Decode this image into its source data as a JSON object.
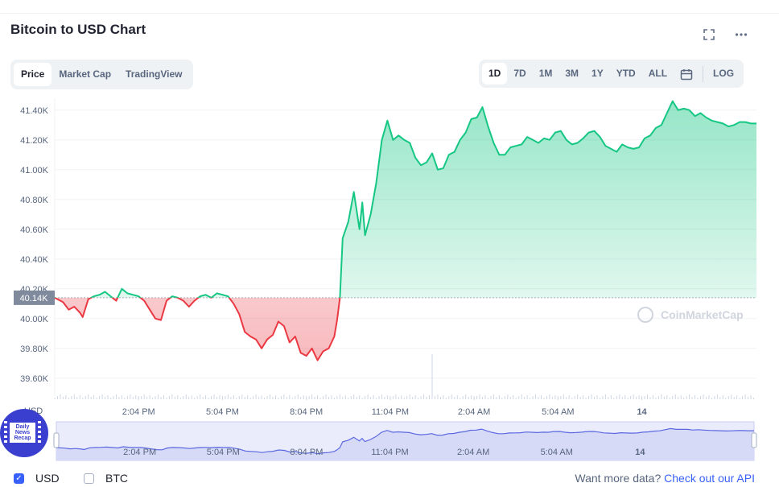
{
  "title": "Bitcoin to USD Chart",
  "header_icons": [
    "fullscreen-icon",
    "more-icon"
  ],
  "tabs": [
    {
      "label": "Price",
      "active": true
    },
    {
      "label": "Market Cap",
      "active": false
    },
    {
      "label": "TradingView",
      "active": false
    }
  ],
  "ranges": [
    {
      "label": "1D",
      "active": true
    },
    {
      "label": "7D",
      "active": false
    },
    {
      "label": "1M",
      "active": false
    },
    {
      "label": "3M",
      "active": false
    },
    {
      "label": "1Y",
      "active": false
    },
    {
      "label": "YTD",
      "active": false
    },
    {
      "label": "ALL",
      "active": false
    }
  ],
  "log_label": "LOG",
  "watermark": "CoinMarketCap",
  "badge": {
    "line1": "Daily",
    "line2": "News",
    "line3": "Recap"
  },
  "footer": {
    "usd_label": "USD",
    "btc_label": "BTC",
    "api_prompt": "Want more data?",
    "api_link": "Check out our API"
  },
  "colors": {
    "up": "#16c784",
    "down": "#ea3943",
    "accent": "#3861fb",
    "baseline_tag": "#808a9d",
    "navigator": "#5b68e0"
  },
  "chart_data": {
    "type": "area",
    "title": "",
    "ylabel": "USD",
    "ylim": [
      39480,
      41480
    ],
    "yticks": [
      39600,
      39800,
      40000,
      40200,
      40400,
      40600,
      40800,
      41000,
      41200,
      41400
    ],
    "ytick_labels": [
      "39.60K",
      "39.80K",
      "40.00K",
      "40.20K",
      "40.40K",
      "40.60K",
      "40.80K",
      "41.00K",
      "41.20K",
      "41.40K"
    ],
    "baseline": 40140,
    "baseline_label": "40.14K",
    "xlim": [
      0,
      25.1
    ],
    "xticks": [
      3,
      6,
      9,
      12,
      15,
      18,
      21
    ],
    "xtick_labels": [
      "2:04 PM",
      "5:04 PM",
      "8:04 PM",
      "11:04 PM",
      "2:04 AM",
      "5:04 AM",
      "14"
    ],
    "x_hours": [
      0,
      0.3,
      0.5,
      0.7,
      0.9,
      1.0,
      1.2,
      1.4,
      1.6,
      1.8,
      2.0,
      2.2,
      2.4,
      2.6,
      2.8,
      3.0,
      3.2,
      3.4,
      3.6,
      3.8,
      4.0,
      4.2,
      4.4,
      4.6,
      4.8,
      5.0,
      5.2,
      5.4,
      5.6,
      5.8,
      6.0,
      6.2,
      6.4,
      6.6,
      6.8,
      7.0,
      7.2,
      7.4,
      7.6,
      7.8,
      8.0,
      8.2,
      8.4,
      8.6,
      8.8,
      9.0,
      9.2,
      9.4,
      9.6,
      9.8,
      10.0,
      10.1,
      10.2,
      10.3,
      10.5,
      10.7,
      10.9,
      11.0,
      11.1,
      11.3,
      11.5,
      11.7,
      11.9,
      12.1,
      12.3,
      12.5,
      12.7,
      12.9,
      13.1,
      13.3,
      13.5,
      13.7,
      13.9,
      14.1,
      14.3,
      14.5,
      14.7,
      14.9,
      15.1,
      15.3,
      15.5,
      15.7,
      15.9,
      16.1,
      16.3,
      16.5,
      16.7,
      16.9,
      17.1,
      17.3,
      17.5,
      17.7,
      17.9,
      18.1,
      18.3,
      18.5,
      18.7,
      18.9,
      19.1,
      19.3,
      19.5,
      19.7,
      19.9,
      20.1,
      20.3,
      20.5,
      20.7,
      20.9,
      21.1,
      21.3,
      21.5,
      21.7,
      21.9,
      22.1,
      22.3,
      22.5,
      22.7,
      22.9,
      23.1,
      23.3,
      23.5,
      23.7,
      23.9,
      24.1,
      24.3,
      24.5,
      24.7,
      24.9,
      25.1
    ],
    "series": [
      {
        "values": [
          40140,
          40110,
          40060,
          40080,
          40040,
          40010,
          40130,
          40150,
          40160,
          40180,
          40150,
          40120,
          40200,
          40170,
          40160,
          40150,
          40120,
          40060,
          40000,
          39990,
          40120,
          40150,
          40140,
          40120,
          40080,
          40120,
          40150,
          40160,
          40140,
          40170,
          40160,
          40150,
          40100,
          40030,
          39910,
          39880,
          39860,
          39800,
          39860,
          39890,
          39980,
          39950,
          39840,
          39880,
          39770,
          39750,
          39800,
          39720,
          39780,
          39800,
          39880,
          39990,
          40140,
          40540,
          40650,
          40850,
          40600,
          40780,
          40560,
          40700,
          40910,
          41200,
          41330,
          41200,
          41230,
          41200,
          41180,
          41080,
          41030,
          41050,
          41110,
          41000,
          41010,
          41100,
          41120,
          41200,
          41250,
          41340,
          41350,
          41420,
          41290,
          41180,
          41100,
          41100,
          41150,
          41160,
          41170,
          41220,
          41200,
          41180,
          41210,
          41200,
          41250,
          41260,
          41200,
          41170,
          41180,
          41210,
          41250,
          41260,
          41220,
          41160,
          41140,
          41120,
          41170,
          41150,
          41140,
          41150,
          41210,
          41230,
          41280,
          41300,
          41380,
          41460,
          41400,
          41410,
          41400,
          41360,
          41380,
          41350,
          41330,
          41320,
          41310,
          41290,
          41300,
          41320,
          41320,
          41310,
          41310
        ]
      }
    ],
    "volume_spike_hour": 13.5,
    "grid": true,
    "legend": "none"
  }
}
